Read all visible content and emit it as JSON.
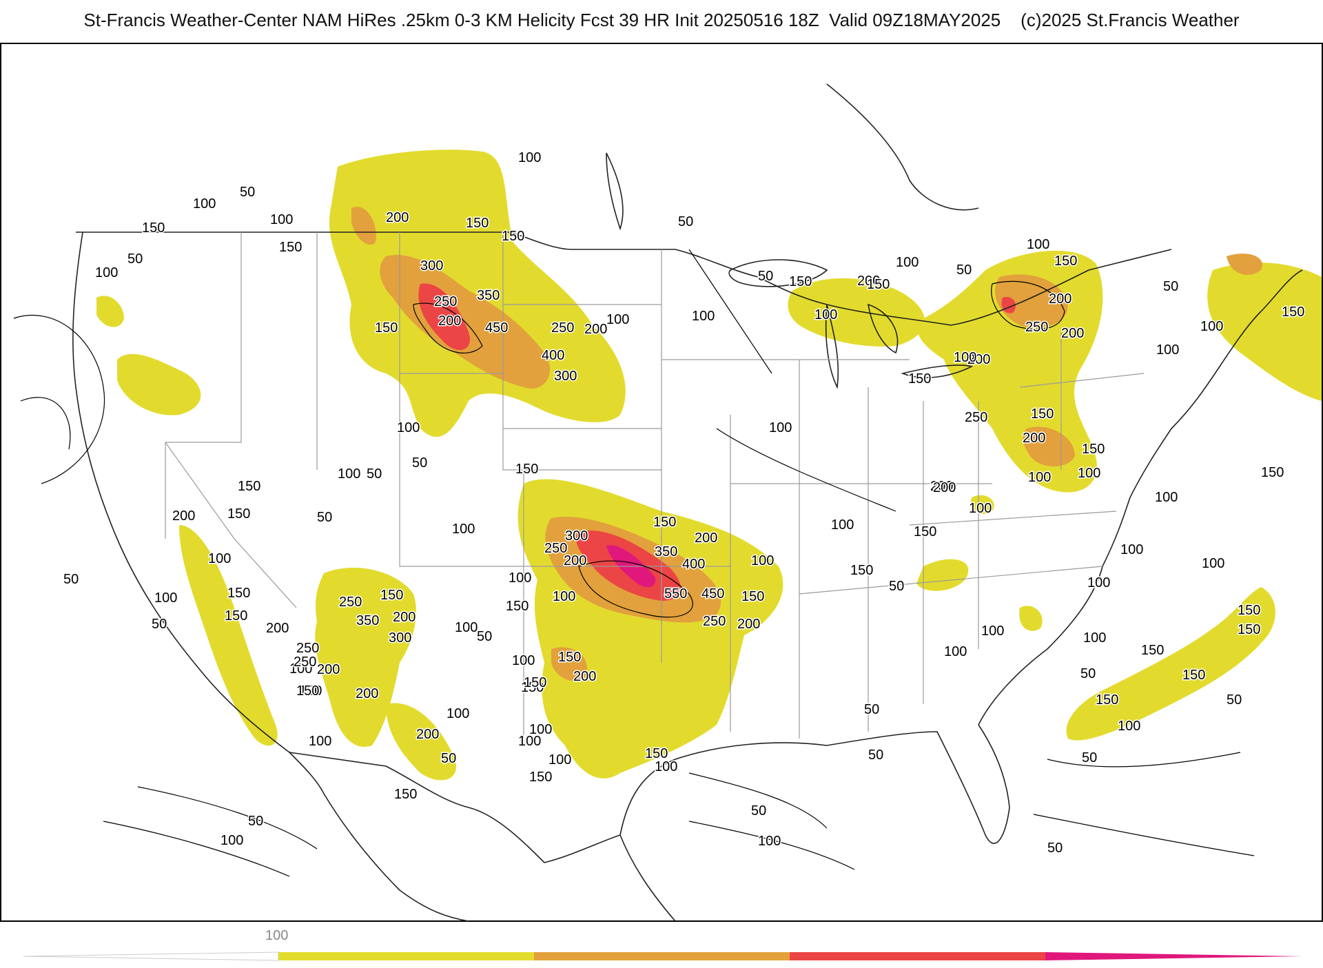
{
  "header": {
    "title": "St-Francis Weather-Center NAM HiRes .25km 0-3 KM Helicity Fcst 39 HR Init 20250516 18Z  Valid 09Z18MAY2025    (c)2025 St.Francis Weather"
  },
  "colors": {
    "level_100": "#e2db2e",
    "level_200": "#e2a13c",
    "level_300": "#ec4545",
    "level_400": "#e0187c",
    "state_lines": "#9a9a9a",
    "coast_lines": "#222222"
  },
  "colorbar": {
    "labels": [
      "100"
    ],
    "segments": [
      "#e2db2e",
      "#e2a13c",
      "#ec4545",
      "#e0187c"
    ]
  },
  "contour_labels": [
    "50",
    "100",
    "150",
    "200",
    "250",
    "300",
    "350",
    "400",
    "450",
    "550"
  ],
  "labels": {
    "l1": "100",
    "l2": "50",
    "l3": "100",
    "l4": "50",
    "l5": "200",
    "l6": "150",
    "l7": "150",
    "l8": "100",
    "l9": "150",
    "l10": "50",
    "l11": "100",
    "l12": "150",
    "l13": "300",
    "l14": "250",
    "l15": "350",
    "l16": "200",
    "l17": "450",
    "l18": "250",
    "l19": "200",
    "l20": "400",
    "l21": "300",
    "l22": "150",
    "l23": "100",
    "l24": "100",
    "l25": "100",
    "l26": "150",
    "l27": "200",
    "l28": "50",
    "l29": "100",
    "l30": "150",
    "l31": "50",
    "l32": "100",
    "l33": "200",
    "l34": "150",
    "l35": "200",
    "l36": "250",
    "l37": "100",
    "l38": "150",
    "l39": "100",
    "l40": "200",
    "l41": "150",
    "l42": "100",
    "l43": "300",
    "l44": "250",
    "l45": "200",
    "l46": "350",
    "l47": "400",
    "l48": "550",
    "l49": "450",
    "l50": "150",
    "l51": "200",
    "l52": "250",
    "l53": "100",
    "l54": "150",
    "l55": "200",
    "l56": "200",
    "l57": "150",
    "l58": "100",
    "l59": "100",
    "l60": "100",
    "l61": "150",
    "l62": "100",
    "l63": "150",
    "l64": "50",
    "l65": "100",
    "l66": "150",
    "l67": "200",
    "l68": "150",
    "l69": "50",
    "l70": "100",
    "l71": "50",
    "l72": "200",
    "l73": "250",
    "l74": "350",
    "l75": "300",
    "l76": "200",
    "l77": "250",
    "l78": "200",
    "l79": "150",
    "l80": "200",
    "l81": "100",
    "l82": "150",
    "l83": "50",
    "l84": "100",
    "l85": "50",
    "l86": "150",
    "l87": "100",
    "l88": "150",
    "l89": "50",
    "l90": "150",
    "l91": "100",
    "l92": "250",
    "l93": "150",
    "l94": "200",
    "l95": "100",
    "l96": "50",
    "l97": "100",
    "l98": "100",
    "l99": "150",
    "l100": "100",
    "l101": "100",
    "l102": "150",
    "l103": "150",
    "l104": "150",
    "l105": "100",
    "l106": "50",
    "l107": "50",
    "l108": "100",
    "l109": "50",
    "l110": "50",
    "l111": "150",
    "l112": "100",
    "l113": "50",
    "l114": "150",
    "l115": "150",
    "l116": "100",
    "l117": "150",
    "l118": "100",
    "l119": "50",
    "l120": "100",
    "l121": "100",
    "l122": "200",
    "l123": "100",
    "l124": "50",
    "l125": "150",
    "l126": "100",
    "l127": "150",
    "l128": "100",
    "l129": "100",
    "l130": "200",
    "l131": "250",
    "l132": "100",
    "l133": "150",
    "l134": "150",
    "l135": "200",
    "l136": "100",
    "l137": "50",
    "l138": "100",
    "l139": "150",
    "l140": "50",
    "l141": "150",
    "l142": "50",
    "l143": "100",
    "l144": "100"
  }
}
